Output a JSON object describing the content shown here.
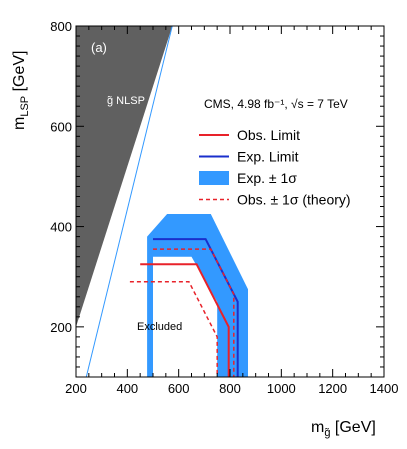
{
  "chart_data": {
    "type": "area",
    "panel_label": "(a)",
    "ylabel_text": "m",
    "ylabel_sub": "LSP",
    "ylabel_unit": " [GeV]",
    "xlabel_text": "m",
    "xlabel_sub": "g̃",
    "xlabel_unit": " [GeV]",
    "region_label_nlsp": "g̃ NLSP",
    "region_label_excluded": "Excluded",
    "experiment_label": "CMS, 4.98 fb⁻¹, √s = 7 TeV",
    "xlim": [
      200,
      1400
    ],
    "ylim": [
      100,
      800
    ],
    "xticks": [
      "200",
      "400",
      "600",
      "800",
      "1000",
      "1200",
      "1400"
    ],
    "yticks": [
      "200",
      "400",
      "600",
      "800"
    ],
    "grid": false,
    "legend_placement": "top-right",
    "legend": [
      {
        "name": "Obs. Limit",
        "style": "line",
        "color": "#e8222a",
        "dashed": false
      },
      {
        "name": "Exp. Limit",
        "style": "line",
        "color": "#1a2fcc",
        "dashed": false
      },
      {
        "name": "Exp. ± 1σ",
        "style": "band",
        "color": "#3399ff",
        "dashed": false
      },
      {
        "name": "Obs. ± 1σ (theory)",
        "style": "line",
        "color": "#e8222a",
        "dashed": true
      }
    ],
    "nlsp_region": [
      [
        200,
        200
      ],
      [
        200,
        800
      ],
      [
        575,
        800
      ]
    ],
    "kinematic_line": [
      [
        240,
        100
      ],
      [
        575,
        800
      ]
    ],
    "series": [
      {
        "name": "Exp. ± 1σ",
        "role": "band",
        "color": "#3399ff",
        "points": [
          [
            477,
            100
          ],
          [
            477,
            380
          ],
          [
            555,
            425
          ],
          [
            725,
            425
          ],
          [
            870,
            275
          ],
          [
            870,
            100
          ],
          [
            750,
            100
          ],
          [
            750,
            250
          ],
          [
            650,
            340
          ],
          [
            500,
            340
          ],
          [
            500,
            100
          ]
        ]
      },
      {
        "name": "Exp. Limit",
        "role": "line",
        "color": "#1a2fcc",
        "dashed": false,
        "points": [
          [
            500,
            375
          ],
          [
            705,
            375
          ],
          [
            830,
            250
          ],
          [
            830,
            100
          ]
        ]
      },
      {
        "name": "Obs. Limit",
        "role": "line",
        "color": "#e8222a",
        "dashed": false,
        "points": [
          [
            450,
            325
          ],
          [
            670,
            325
          ],
          [
            795,
            200
          ],
          [
            795,
            100
          ]
        ]
      },
      {
        "name": "Obs. ± 1σ (theory)",
        "role": "line",
        "color": "#e8222a",
        "dashed": true,
        "points": [
          [
            500,
            355
          ],
          [
            725,
            355
          ],
          [
            815,
            265
          ],
          [
            815,
            100
          ]
        ]
      },
      {
        "name": "Obs. ± 1σ (theory)",
        "role": "line",
        "color": "#e8222a",
        "dashed": true,
        "points": [
          [
            410,
            290
          ],
          [
            640,
            290
          ],
          [
            750,
            180
          ],
          [
            750,
            100
          ]
        ]
      }
    ]
  }
}
